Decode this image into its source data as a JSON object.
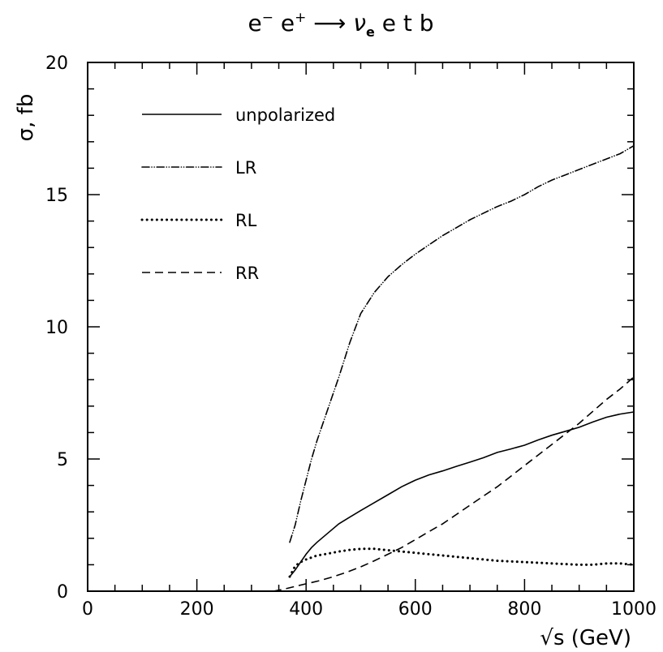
{
  "chart_data": {
    "type": "line",
    "title": {
      "lhs_1": "e",
      "lhs_1_sup": "−",
      "lhs_2": "e",
      "lhs_2_sup": "+",
      "arrow": "⟶",
      "rhs_1": "ν",
      "rhs_1_sub": "e",
      "rhs_2": "e t b"
    },
    "xlabel": "√s (GeV)",
    "ylabel": "σ, fb",
    "xlim": [
      0,
      1000
    ],
    "ylim": [
      0,
      20
    ],
    "x_ticks": [
      0,
      200,
      400,
      600,
      800,
      1000
    ],
    "y_ticks": [
      0,
      5,
      10,
      15,
      20
    ],
    "grid": false,
    "legend_position": "top-left",
    "series": [
      {
        "name": "unpolarized",
        "style": "solid",
        "x": [
          370,
          380,
          390,
          400,
          410,
          420,
          440,
          460,
          480,
          500,
          525,
          550,
          575,
          600,
          625,
          650,
          675,
          700,
          725,
          750,
          775,
          800,
          825,
          850,
          875,
          900,
          925,
          950,
          975,
          1000
        ],
        "y": [
          0.55,
          0.8,
          1.1,
          1.4,
          1.65,
          1.85,
          2.2,
          2.55,
          2.8,
          3.05,
          3.35,
          3.65,
          3.95,
          4.2,
          4.4,
          4.55,
          4.72,
          4.88,
          5.05,
          5.25,
          5.38,
          5.52,
          5.72,
          5.9,
          6.05,
          6.2,
          6.4,
          6.58,
          6.7,
          6.78
        ]
      },
      {
        "name": "LR",
        "style": "dash-dot",
        "x": [
          370,
          380,
          390,
          400,
          410,
          420,
          440,
          460,
          480,
          500,
          525,
          550,
          575,
          600,
          625,
          650,
          675,
          700,
          725,
          750,
          775,
          800,
          825,
          850,
          875,
          900,
          925,
          950,
          975,
          1000
        ],
        "y": [
          1.85,
          2.5,
          3.4,
          4.2,
          5.0,
          5.7,
          6.9,
          8.1,
          9.4,
          10.5,
          11.3,
          11.9,
          12.35,
          12.75,
          13.1,
          13.45,
          13.75,
          14.05,
          14.3,
          14.55,
          14.75,
          15.0,
          15.3,
          15.55,
          15.75,
          15.95,
          16.15,
          16.35,
          16.55,
          16.85
        ]
      },
      {
        "name": "RL",
        "style": "dotted",
        "x": [
          370,
          380,
          390,
          400,
          420,
          440,
          460,
          480,
          500,
          525,
          550,
          575,
          600,
          625,
          650,
          700,
          750,
          800,
          850,
          900,
          925,
          950,
          975,
          1000
        ],
        "y": [
          0.55,
          0.95,
          1.1,
          1.2,
          1.35,
          1.42,
          1.5,
          1.56,
          1.6,
          1.6,
          1.55,
          1.5,
          1.45,
          1.4,
          1.35,
          1.25,
          1.15,
          1.1,
          1.05,
          1.0,
          1.0,
          1.05,
          1.05,
          1.0
        ]
      },
      {
        "name": "RR",
        "style": "dashed",
        "x": [
          340,
          360,
          380,
          400,
          425,
          450,
          475,
          500,
          525,
          550,
          575,
          600,
          625,
          650,
          675,
          700,
          725,
          750,
          775,
          800,
          825,
          850,
          875,
          900,
          925,
          950,
          975,
          1000
        ],
        "y": [
          0.0,
          0.08,
          0.18,
          0.28,
          0.4,
          0.55,
          0.72,
          0.92,
          1.15,
          1.4,
          1.65,
          1.95,
          2.25,
          2.55,
          2.9,
          3.25,
          3.6,
          3.95,
          4.35,
          4.75,
          5.15,
          5.55,
          5.95,
          6.35,
          6.8,
          7.25,
          7.65,
          8.1
        ]
      }
    ]
  }
}
